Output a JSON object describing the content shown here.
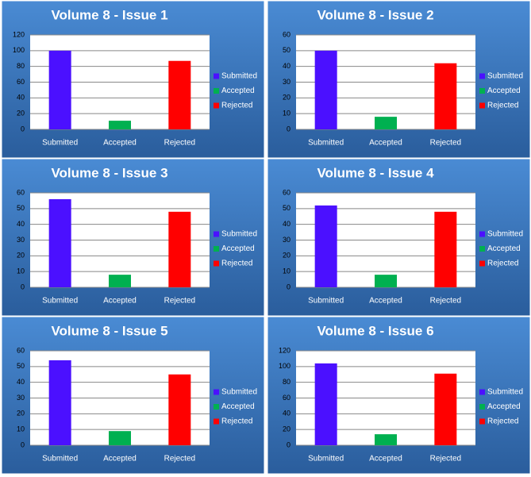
{
  "chart_data": [
    {
      "type": "bar",
      "title": "Volume 8 - Issue 1",
      "categories": [
        "Submitted",
        "Accepted",
        "Rejected"
      ],
      "values": [
        100,
        11,
        87
      ],
      "colors": [
        "#4b10ff",
        "#00b050",
        "#ff0000"
      ],
      "ylim": [
        0,
        120
      ],
      "yticks": [
        0,
        20,
        40,
        60,
        80,
        100,
        120
      ],
      "grid": true,
      "legend": "right"
    },
    {
      "type": "bar",
      "title": "Volume 8 - Issue 2",
      "categories": [
        "Submitted",
        "Accepted",
        "Rejected"
      ],
      "values": [
        50,
        8,
        42
      ],
      "colors": [
        "#4b10ff",
        "#00b050",
        "#ff0000"
      ],
      "ylim": [
        0,
        60
      ],
      "yticks": [
        0,
        10,
        20,
        30,
        40,
        50,
        60
      ],
      "grid": true,
      "legend": "right"
    },
    {
      "type": "bar",
      "title": "Volume 8 - Issue 3",
      "categories": [
        "Submitted",
        "Accepted",
        "Rejected"
      ],
      "values": [
        56,
        8,
        48
      ],
      "colors": [
        "#4b10ff",
        "#00b050",
        "#ff0000"
      ],
      "ylim": [
        0,
        60
      ],
      "yticks": [
        0,
        10,
        20,
        30,
        40,
        50,
        60
      ],
      "grid": true,
      "legend": "right"
    },
    {
      "type": "bar",
      "title": "Volume 8 - Issue 4",
      "categories": [
        "Submitted",
        "Accepted",
        "Rejected"
      ],
      "values": [
        52,
        8,
        48
      ],
      "colors": [
        "#4b10ff",
        "#00b050",
        "#ff0000"
      ],
      "ylim": [
        0,
        60
      ],
      "yticks": [
        0,
        10,
        20,
        30,
        40,
        50,
        60
      ],
      "grid": true,
      "legend": "right"
    },
    {
      "type": "bar",
      "title": "Volume 8 - Issue 5",
      "categories": [
        "Submitted",
        "Accepted",
        "Rejected"
      ],
      "values": [
        54,
        9,
        45
      ],
      "colors": [
        "#4b10ff",
        "#00b050",
        "#ff0000"
      ],
      "ylim": [
        0,
        60
      ],
      "yticks": [
        0,
        10,
        20,
        30,
        40,
        50,
        60
      ],
      "grid": true,
      "legend": "right"
    },
    {
      "type": "bar",
      "title": "Volume 8 - Issue 6",
      "categories": [
        "Submitted",
        "Accepted",
        "Rejected"
      ],
      "values": [
        104,
        14,
        91
      ],
      "colors": [
        "#4b10ff",
        "#00b050",
        "#ff0000"
      ],
      "ylim": [
        0,
        120
      ],
      "yticks": [
        0,
        20,
        40,
        60,
        80,
        100,
        120
      ],
      "grid": true,
      "legend": "right"
    }
  ]
}
